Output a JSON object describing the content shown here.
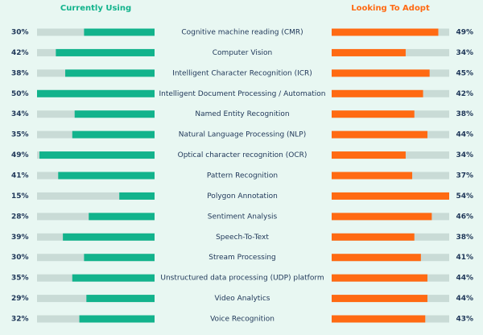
{
  "chart_data": {
    "type": "butterfly-bar",
    "categories": [
      "Cognitive machine reading (CMR)",
      "Computer Vision",
      "Intelligent Character Recognition (ICR)",
      "Intelligent Document Processing / Automation",
      "Named Entity Recognition",
      "Natural Language Processing (NLP)",
      "Optical character recognition (OCR)",
      "Pattern Recognition",
      "Polygon Annotation",
      "Sentiment Analysis",
      "Speech-To-Text",
      "Stream Processing",
      "Unstructured data processing (UDP) platform",
      "Video Analytics",
      "Voice Recognition"
    ],
    "series": [
      {
        "name": "Currently Using",
        "color": "#12b38c",
        "axis": "x",
        "values": [
          30,
          42,
          38,
          50,
          34,
          35,
          49,
          41,
          15,
          28,
          39,
          30,
          35,
          29,
          32
        ],
        "value_labels": [
          "30%",
          "42%",
          "38%",
          "50%",
          "34%",
          "35%",
          "49%",
          "41%",
          "15%",
          "28%",
          "39%",
          "30%",
          "35%",
          "29%",
          "32%"
        ]
      },
      {
        "name": "Looking To Adopt",
        "color": "#ff6a13",
        "axis": "x2",
        "values": [
          49,
          34,
          45,
          42,
          38,
          44,
          34,
          37,
          54,
          46,
          38,
          41,
          44,
          44,
          43
        ],
        "value_labels": [
          "49%",
          "34%",
          "45%",
          "42%",
          "38%",
          "44%",
          "34%",
          "37%",
          "54%",
          "46%",
          "38%",
          "41%",
          "44%",
          "44%",
          "43%"
        ]
      }
    ],
    "xlim": [
      0,
      50
    ],
    "x2lim": [
      0,
      54
    ],
    "track_color": "#c9dbd6"
  }
}
